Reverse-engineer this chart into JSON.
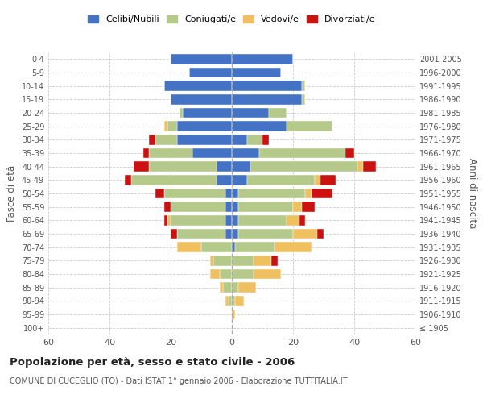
{
  "age_groups": [
    "100+",
    "95-99",
    "90-94",
    "85-89",
    "80-84",
    "75-79",
    "70-74",
    "65-69",
    "60-64",
    "55-59",
    "50-54",
    "45-49",
    "40-44",
    "35-39",
    "30-34",
    "25-29",
    "20-24",
    "15-19",
    "10-14",
    "5-9",
    "0-4"
  ],
  "birth_years": [
    "≤ 1905",
    "1906-1910",
    "1911-1915",
    "1916-1920",
    "1921-1925",
    "1926-1930",
    "1931-1935",
    "1936-1940",
    "1941-1945",
    "1946-1950",
    "1951-1955",
    "1956-1960",
    "1961-1965",
    "1966-1970",
    "1971-1975",
    "1976-1980",
    "1981-1985",
    "1986-1990",
    "1991-1995",
    "1996-2000",
    "2001-2005"
  ],
  "male": {
    "celibi": [
      0,
      0,
      0,
      0,
      0,
      0,
      0,
      2,
      2,
      2,
      2,
      5,
      5,
      13,
      18,
      18,
      16,
      20,
      22,
      14,
      20
    ],
    "coniugati": [
      0,
      0,
      1,
      3,
      4,
      6,
      10,
      16,
      18,
      18,
      20,
      28,
      22,
      14,
      7,
      3,
      1,
      0,
      0,
      0,
      0
    ],
    "vedovi": [
      0,
      0,
      1,
      1,
      3,
      1,
      8,
      0,
      1,
      0,
      0,
      0,
      0,
      0,
      0,
      1,
      0,
      0,
      0,
      0,
      0
    ],
    "divorziati": [
      0,
      0,
      0,
      0,
      0,
      0,
      0,
      2,
      1,
      2,
      3,
      2,
      5,
      2,
      2,
      0,
      0,
      0,
      0,
      0,
      0
    ]
  },
  "female": {
    "nubili": [
      0,
      0,
      0,
      0,
      0,
      0,
      1,
      2,
      2,
      2,
      2,
      5,
      6,
      9,
      5,
      18,
      12,
      23,
      23,
      16,
      20
    ],
    "coniugate": [
      0,
      0,
      1,
      2,
      7,
      7,
      13,
      18,
      16,
      18,
      22,
      22,
      35,
      28,
      5,
      15,
      6,
      1,
      1,
      0,
      0
    ],
    "vedove": [
      0,
      1,
      3,
      6,
      9,
      6,
      12,
      8,
      4,
      3,
      2,
      2,
      2,
      0,
      0,
      0,
      0,
      0,
      0,
      0,
      0
    ],
    "divorziate": [
      0,
      0,
      0,
      0,
      0,
      2,
      0,
      2,
      2,
      4,
      7,
      5,
      4,
      3,
      2,
      0,
      0,
      0,
      0,
      0,
      0
    ]
  },
  "colors": {
    "celibi_nubili": "#4472c4",
    "coniugati": "#b5c98a",
    "vedovi": "#f0c060",
    "divorziati": "#cc1111"
  },
  "xlim": 60,
  "title": "Popolazione per età, sesso e stato civile - 2006",
  "subtitle": "COMUNE DI CUCEGLIO (TO) - Dati ISTAT 1° gennaio 2006 - Elaborazione TUTTITALIA.IT",
  "ylabel_left": "Fasce di età",
  "ylabel_right": "Anni di nascita",
  "legend_labels": [
    "Celibi/Nubili",
    "Coniugati/e",
    "Vedovi/e",
    "Divorziati/e"
  ],
  "background_color": "#ffffff",
  "bar_height": 0.75
}
